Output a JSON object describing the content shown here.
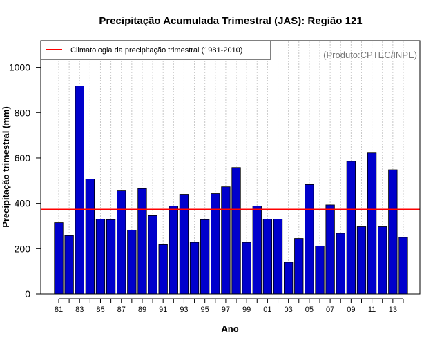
{
  "chart_data": {
    "type": "bar",
    "title": "Precipitação Acumulada Trimestral (JAS): Região 121",
    "xlabel": "Ano",
    "ylabel": "Precipitação trimestral (mm)",
    "credit": "(Produto:CPTEC/INPE)",
    "ylim": [
      0,
      1100
    ],
    "yticks": [
      0,
      200,
      400,
      600,
      800,
      1000
    ],
    "categories": [
      "1981",
      "1982",
      "1983",
      "1984",
      "1985",
      "1986",
      "1987",
      "1988",
      "1989",
      "1990",
      "1991",
      "1992",
      "1993",
      "1994",
      "1995",
      "1996",
      "1997",
      "1998",
      "1999",
      "2000",
      "2001",
      "2002",
      "2003",
      "2004",
      "2005",
      "2006",
      "2007",
      "2008",
      "2009",
      "2010",
      "2011",
      "2012",
      "2013",
      "2014"
    ],
    "values": [
      315,
      258,
      918,
      507,
      330,
      328,
      455,
      282,
      465,
      346,
      218,
      388,
      440,
      228,
      328,
      443,
      473,
      558,
      228,
      388,
      330,
      330,
      140,
      245,
      483,
      212,
      393,
      268,
      585,
      297,
      622,
      297,
      548,
      250
    ],
    "xtick_labels": [
      "81",
      "83",
      "85",
      "87",
      "89",
      "91",
      "93",
      "95",
      "97",
      "99",
      "01",
      "03",
      "05",
      "07",
      "09",
      "11",
      "13"
    ],
    "xtick_every": 2,
    "bar_color": "#0000CC",
    "grid": "vertical dotted",
    "reference_line": {
      "label": "Climatologia da precipitação trimestral (1981-2010)",
      "value": 373,
      "color": "#FF0000"
    },
    "legend_position": "top-left"
  }
}
